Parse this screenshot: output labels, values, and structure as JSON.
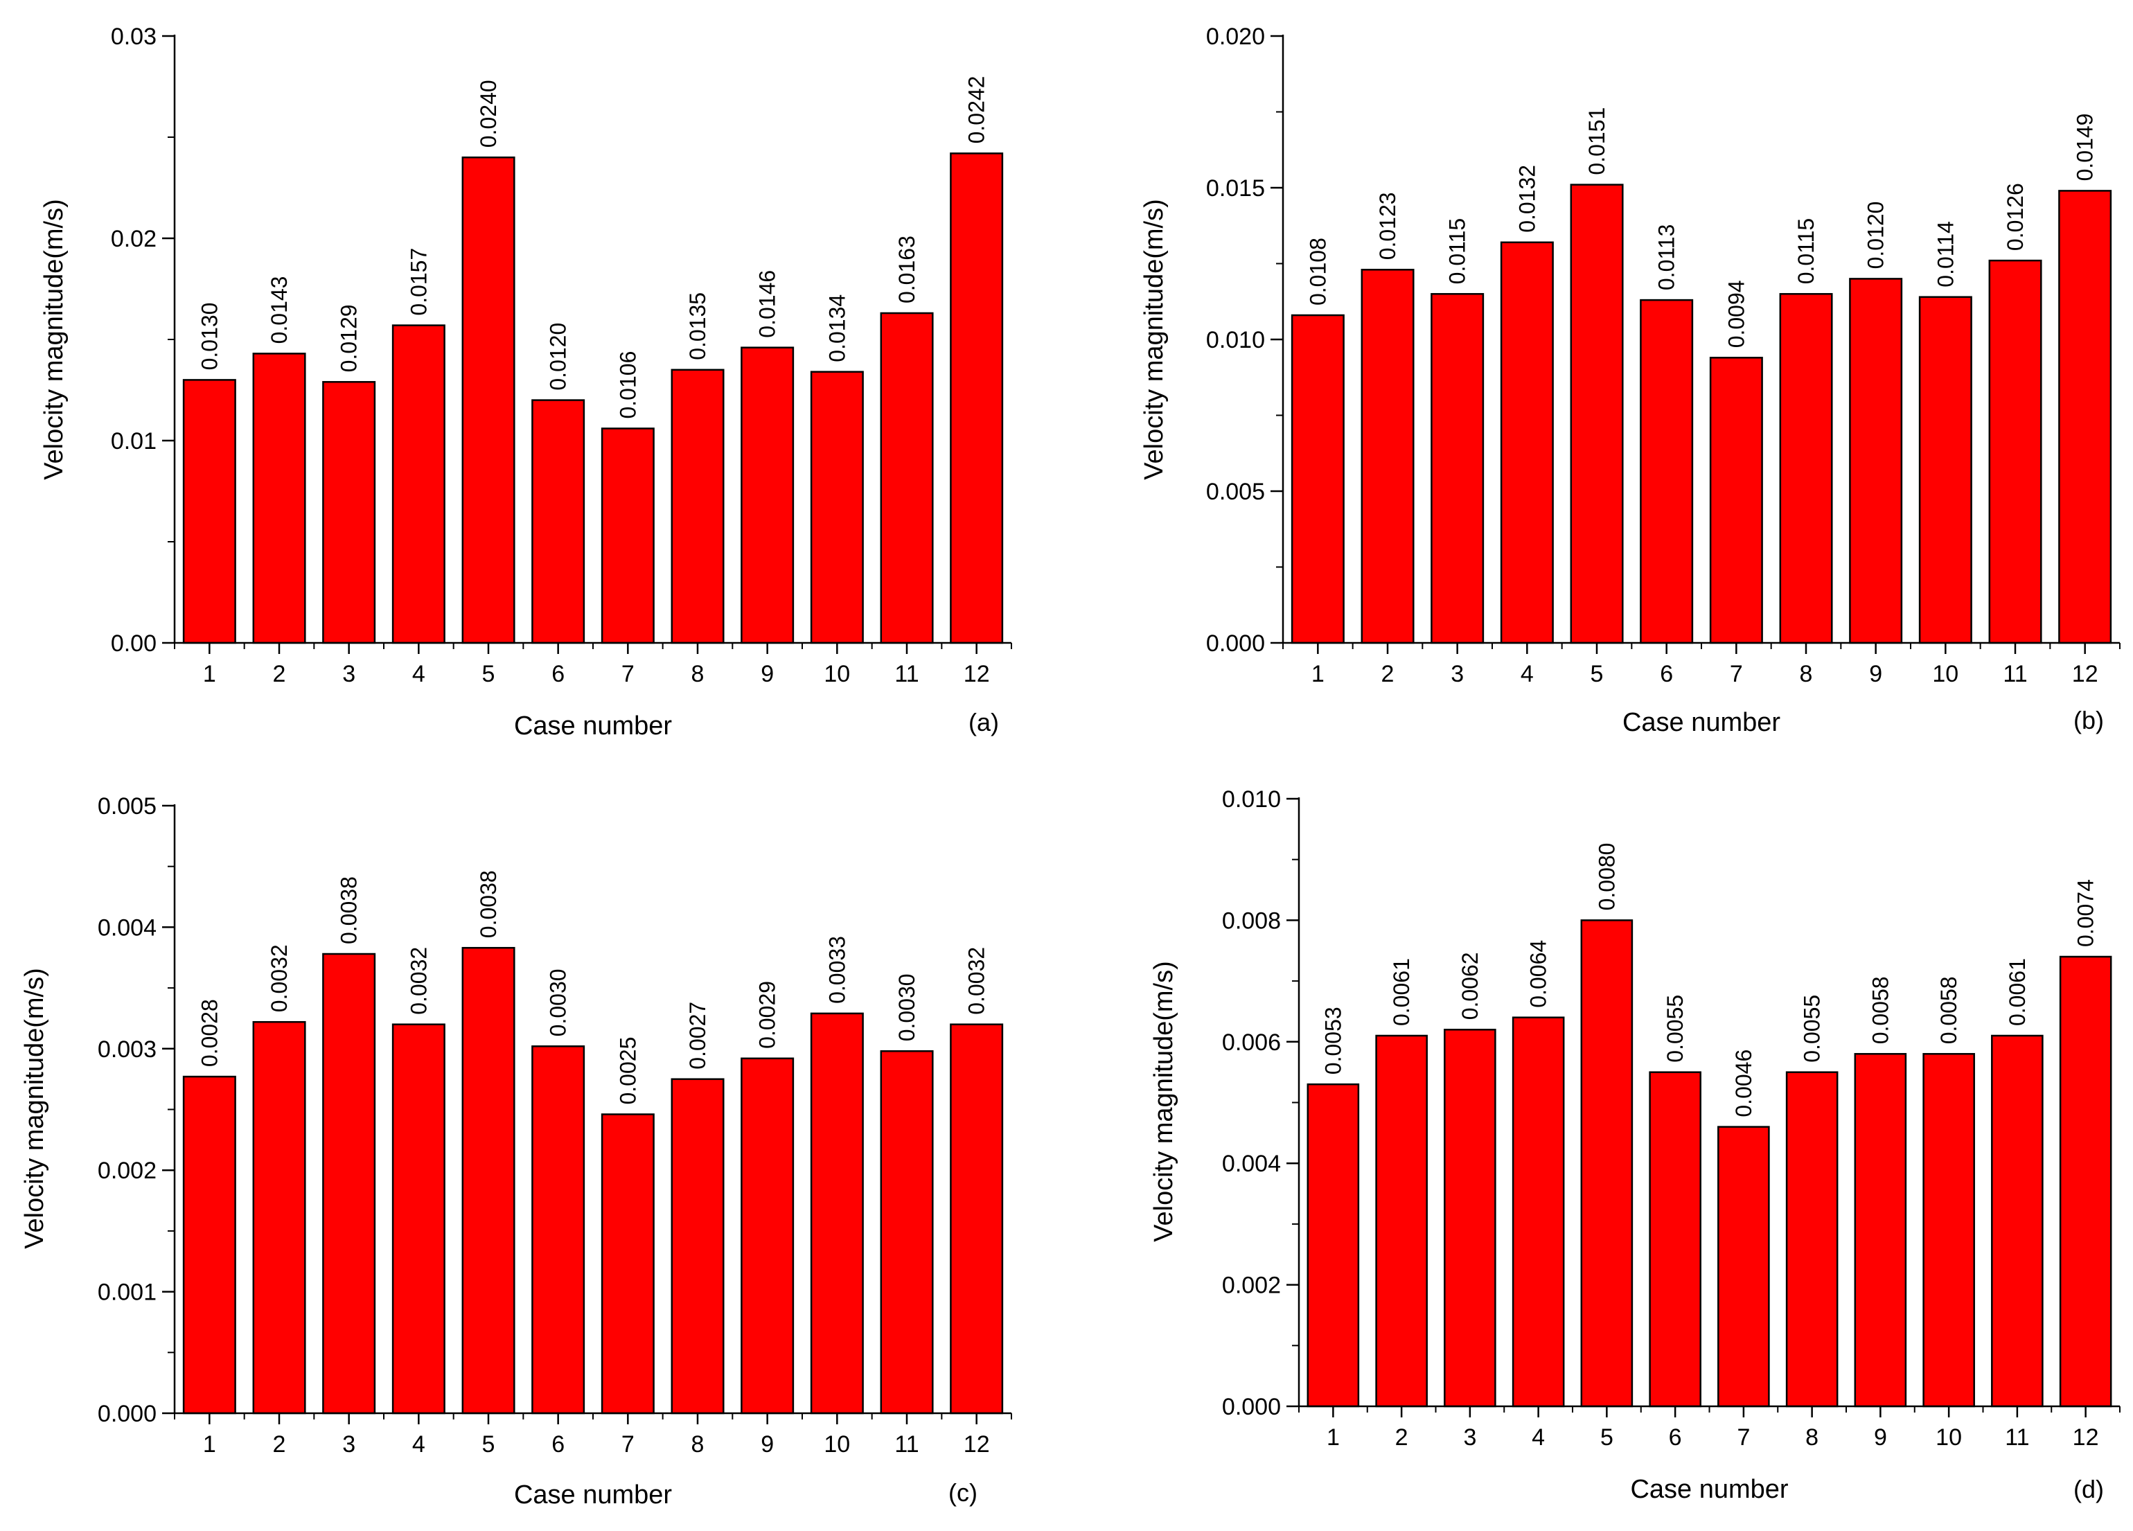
{
  "figure": {
    "bar_color": "#ff0000",
    "bar_edge_color": "#000000",
    "axis_color": "#000000"
  },
  "chart_data": [
    {
      "type": "bar",
      "panel": "(a)",
      "title": "",
      "xlabel": "Case number",
      "ylabel": "Velocity magnitude(m/s)",
      "ylim": [
        0,
        0.03
      ],
      "yticks": [
        "0.00",
        "0.01",
        "0.02",
        "0.03"
      ],
      "categories": [
        "1",
        "2",
        "3",
        "4",
        "5",
        "6",
        "7",
        "8",
        "9",
        "10",
        "11",
        "12"
      ],
      "values": [
        0.013,
        0.0143,
        0.0129,
        0.0157,
        0.024,
        0.012,
        0.0106,
        0.0135,
        0.0146,
        0.0134,
        0.0163,
        0.0242
      ],
      "value_labels": [
        "0.0130",
        "0.0143",
        "0.0129",
        "0.0157",
        "0.0240",
        "0.0120",
        "0.0106",
        "0.0135",
        "0.0146",
        "0.0134",
        "0.0163",
        "0.0242"
      ],
      "grid": false,
      "legend": "none"
    },
    {
      "type": "bar",
      "panel": "(b)",
      "title": "",
      "xlabel": "Case number",
      "ylabel": "Velocity magnitude(m/s)",
      "ylim": [
        0,
        0.02
      ],
      "yticks": [
        "0.000",
        "0.005",
        "0.010",
        "0.015",
        "0.020"
      ],
      "categories": [
        "1",
        "2",
        "3",
        "4",
        "5",
        "6",
        "7",
        "8",
        "9",
        "10",
        "11",
        "12"
      ],
      "values": [
        0.0108,
        0.0123,
        0.0115,
        0.0132,
        0.0151,
        0.0113,
        0.0094,
        0.0115,
        0.012,
        0.0114,
        0.0126,
        0.0149
      ],
      "value_labels": [
        "0.0108",
        "0.0123",
        "0.0115",
        "0.0132",
        "0.0151",
        "0.0113",
        "0.0094",
        "0.0115",
        "0.0120",
        "0.0114",
        "0.0126",
        "0.0149"
      ],
      "grid": false,
      "legend": "none"
    },
    {
      "type": "bar",
      "panel": "(c)",
      "title": "",
      "xlabel": "Case number",
      "ylabel": "Velocity magnitude(m/s)",
      "ylim": [
        0,
        0.005
      ],
      "yticks": [
        "0.000",
        "0.001",
        "0.002",
        "0.003",
        "0.004",
        "0.005"
      ],
      "categories": [
        "1",
        "2",
        "3",
        "4",
        "5",
        "6",
        "7",
        "8",
        "9",
        "10",
        "11",
        "12"
      ],
      "values": [
        0.00277,
        0.00322,
        0.00378,
        0.0032,
        0.00383,
        0.00302,
        0.00246,
        0.00275,
        0.00292,
        0.00329,
        0.00298,
        0.0032
      ],
      "value_labels": [
        "0.0028",
        "0.0032",
        "0.0038",
        "0.0032",
        "0.0038",
        "0.0030",
        "0.0025",
        "0.0027",
        "0.0029",
        "0.0033",
        "0.0030",
        "0.0032"
      ],
      "grid": false,
      "legend": "none"
    },
    {
      "type": "bar",
      "panel": "(d)",
      "title": "",
      "xlabel": "Case number",
      "ylabel": "Velocity magnitude(m/s)",
      "ylim": [
        0,
        0.01
      ],
      "yticks": [
        "0.000",
        "0.002",
        "0.004",
        "0.006",
        "0.008",
        "0.010"
      ],
      "categories": [
        "1",
        "2",
        "3",
        "4",
        "5",
        "6",
        "7",
        "8",
        "9",
        "10",
        "11",
        "12"
      ],
      "values": [
        0.0053,
        0.0061,
        0.0062,
        0.0064,
        0.008,
        0.0055,
        0.0046,
        0.0055,
        0.0058,
        0.0058,
        0.0061,
        0.0074
      ],
      "value_labels": [
        "0.0053",
        "0.0061",
        "0.0062",
        "0.0064",
        "0.0080",
        "0.0055",
        "0.0046",
        "0.0055",
        "0.0058",
        "0.0058",
        "0.0061",
        "0.0074"
      ],
      "grid": false,
      "legend": "none"
    }
  ]
}
